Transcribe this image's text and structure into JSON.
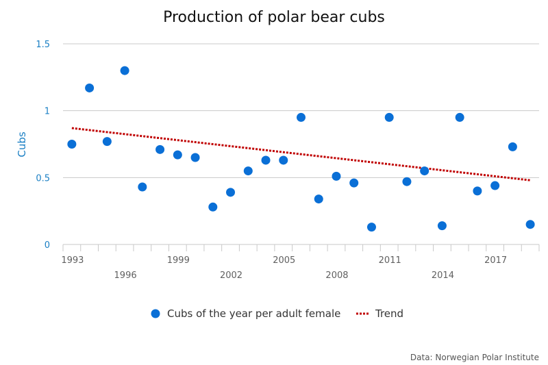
{
  "chart_data": {
    "type": "scatter",
    "title": "Production of polar bear cubs",
    "xlabel": "",
    "ylabel": "Cubs",
    "ylim": [
      0,
      1.5
    ],
    "yticks": [
      0,
      0.5,
      1,
      1.5
    ],
    "ytick_labels": [
      "0",
      "0.5",
      "1",
      "1.5"
    ],
    "grid": true,
    "categories": [
      "1993",
      "1994",
      "1995",
      "1996",
      "1997",
      "1998",
      "1999",
      "2000",
      "2001",
      "2002",
      "2003",
      "2004",
      "2005",
      "2006",
      "2007",
      "2008",
      "2009",
      "2010",
      "2011",
      "2012",
      "2013",
      "2014",
      "2015",
      "2016",
      "2017",
      "2018",
      "2019"
    ],
    "xtick_labels_top": [
      "1993",
      "1999",
      "2005",
      "2011",
      "2017"
    ],
    "xtick_labels_bottom": [
      "1996",
      "2002",
      "2008",
      "2014"
    ],
    "series": [
      {
        "name": "Cubs of the year per adult female",
        "kind": "scatter",
        "color": "#0a6fd6",
        "values": [
          0.75,
          1.17,
          0.77,
          1.3,
          0.43,
          0.71,
          0.67,
          0.65,
          0.28,
          0.39,
          0.55,
          0.63,
          0.63,
          0.95,
          0.34,
          0.51,
          0.46,
          0.13,
          0.95,
          0.47,
          0.55,
          0.14,
          0.95,
          0.4,
          0.44,
          0.73,
          0.15
        ]
      },
      {
        "name": "Trend",
        "kind": "line-dotted",
        "color": "#c00000",
        "start": {
          "x": "1993",
          "y": 0.87
        },
        "end": {
          "x": "2019",
          "y": 0.48
        }
      }
    ],
    "legend": "bottom-center",
    "credit": "Data: Norwegian Polar Institute"
  }
}
